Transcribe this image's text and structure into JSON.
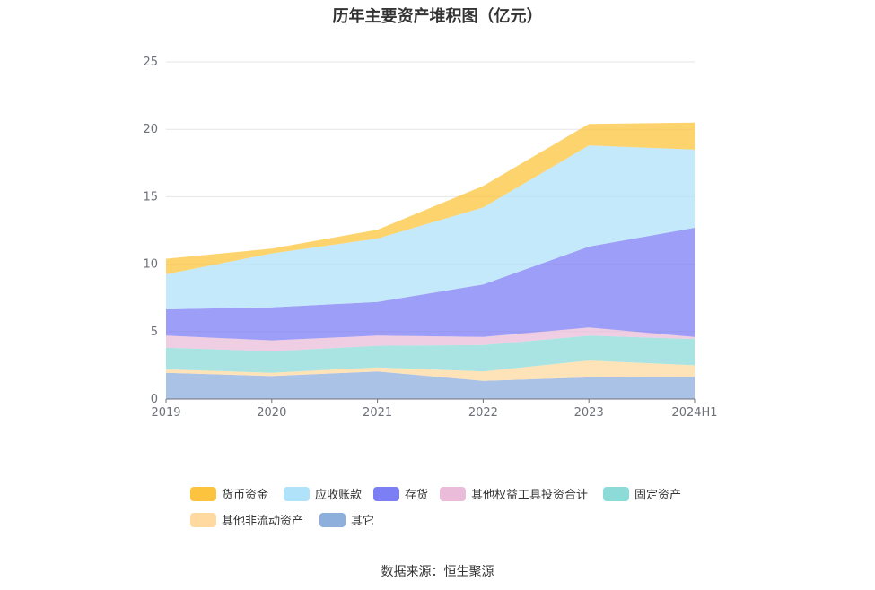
{
  "chart_data": {
    "type": "area",
    "title": "历年主要资产堆积图（亿元）",
    "source": "数据来源：恒生聚源",
    "x": [
      "2019",
      "2020",
      "2021",
      "2022",
      "2023",
      "2024H1"
    ],
    "yticks": [
      "0",
      "5",
      "10",
      "15",
      "20",
      "25"
    ],
    "ylim": [
      0,
      25
    ],
    "grid": true,
    "legend_position": "bottom",
    "series": [
      {
        "name": "其它",
        "color": "#8eaedc",
        "values": [
          1.95,
          1.7,
          2.05,
          1.35,
          1.6,
          1.65
        ]
      },
      {
        "name": "其他非流动资产",
        "color": "#ffd9a0",
        "values": [
          0.25,
          0.25,
          0.3,
          0.7,
          1.25,
          0.85
        ]
      },
      {
        "name": "固定资产",
        "color": "#8ddbd8",
        "values": [
          1.6,
          1.6,
          1.6,
          1.95,
          1.85,
          1.95
        ]
      },
      {
        "name": "其他权益工具投资合计",
        "color": "#eabcd9",
        "values": [
          0.9,
          0.8,
          0.75,
          0.6,
          0.6,
          0.15
        ]
      },
      {
        "name": "存货",
        "color": "#7c7ef4",
        "values": [
          1.95,
          2.45,
          2.5,
          3.9,
          6.0,
          8.1
        ]
      },
      {
        "name": "应收账款",
        "color": "#b0e2f9",
        "values": [
          2.6,
          4.0,
          4.7,
          5.7,
          7.5,
          5.8
        ]
      },
      {
        "name": "货币资金",
        "color": "#fcc43e",
        "values": [
          1.15,
          0.35,
          0.65,
          1.6,
          1.6,
          2.0
        ]
      }
    ],
    "legend_order": [
      "货币资金",
      "应收账款",
      "存货",
      "其他权益工具投资合计",
      "固定资产",
      "其他非流动资产",
      "其它"
    ]
  }
}
